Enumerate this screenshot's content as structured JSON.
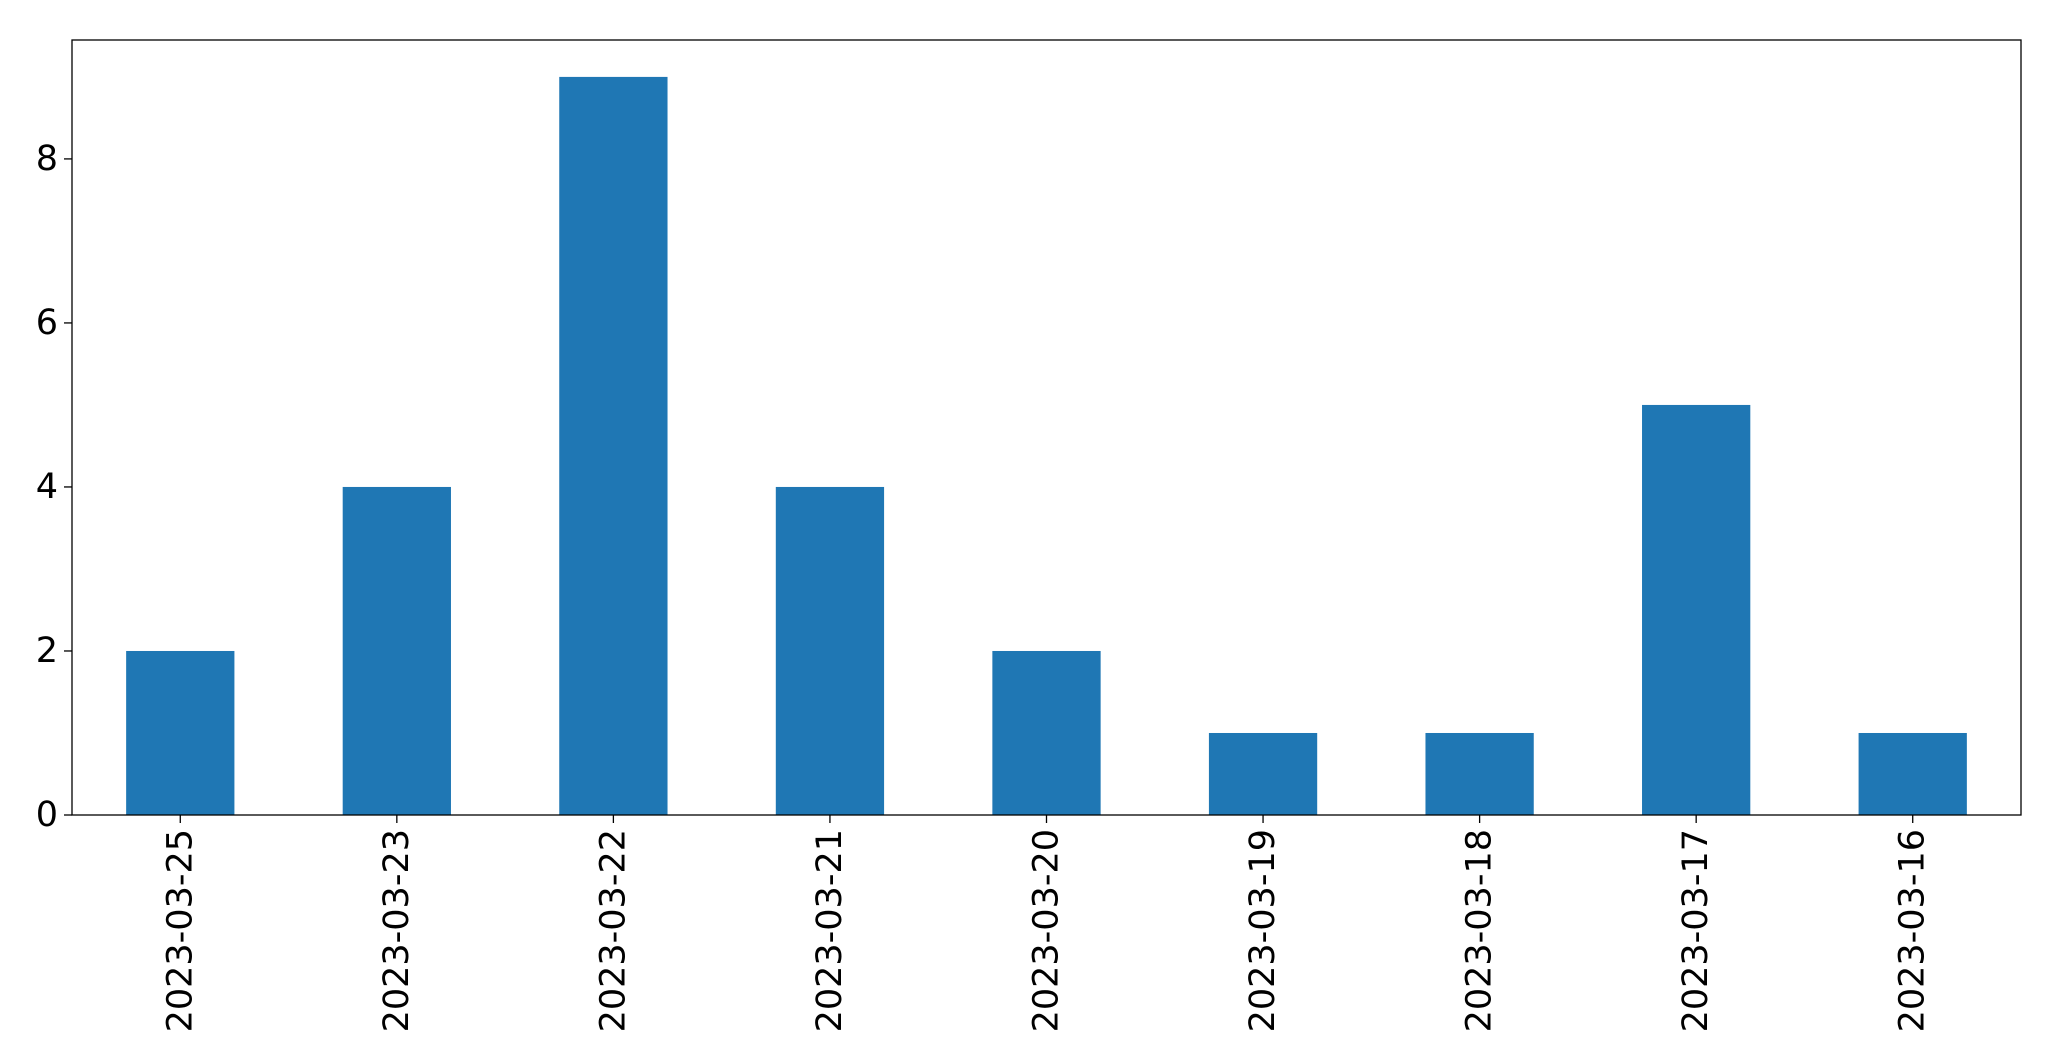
{
  "chart_data": {
    "type": "bar",
    "categories": [
      "2023-03-25",
      "2023-03-23",
      "2023-03-22",
      "2023-03-21",
      "2023-03-20",
      "2023-03-19",
      "2023-03-18",
      "2023-03-17",
      "2023-03-16"
    ],
    "values": [
      2,
      4,
      9,
      4,
      2,
      1,
      1,
      5,
      1
    ],
    "title": "",
    "xlabel": "",
    "ylabel": "",
    "ylim": [
      0,
      9.45
    ],
    "yticks": [
      0,
      2,
      4,
      6,
      8
    ],
    "grid": false,
    "bar_color": "#1f77b4",
    "x_tick_rotation": "vertical"
  }
}
